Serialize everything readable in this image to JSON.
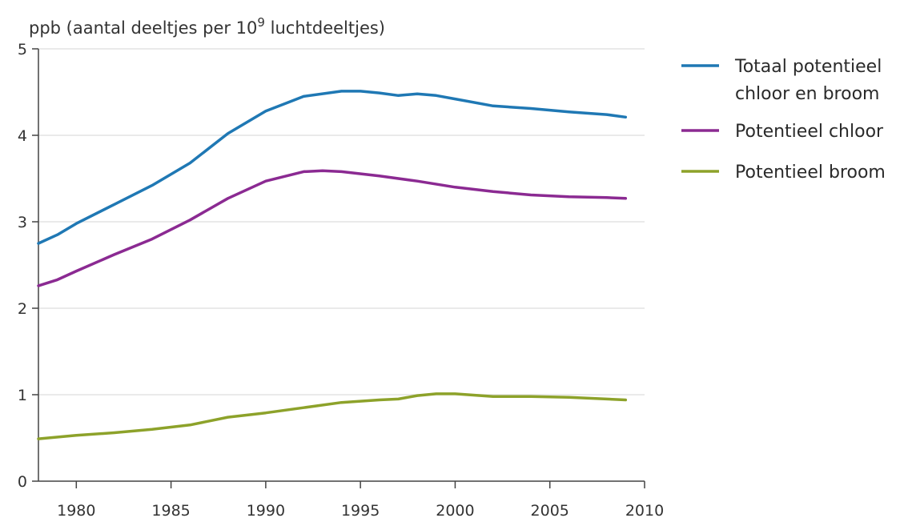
{
  "chart_data": {
    "type": "line",
    "ylabel": "ppb (aantal deeltjes per 10",
    "ylabel_exp": "9",
    "ylabel_tail": " luchtdeeltjes)",
    "xlim": [
      1978,
      2010
    ],
    "ylim": [
      0,
      5
    ],
    "xticks": [
      "1980",
      "1985",
      "1990",
      "1995",
      "2000",
      "2005",
      "2010"
    ],
    "yticks": [
      "0",
      "1",
      "2",
      "3",
      "4",
      "5"
    ],
    "grid": "horizontal",
    "legend_position": "right",
    "series": [
      {
        "name": "Totaal potentieel chloor en broom",
        "legend_lines": [
          "Totaal potentieel",
          "chloor en broom"
        ],
        "color": "#1f78b4",
        "x": [
          1978,
          1979,
          1980,
          1982,
          1984,
          1986,
          1988,
          1990,
          1992,
          1994,
          1995,
          1996,
          1997,
          1998,
          1999,
          2000,
          2002,
          2004,
          2006,
          2008,
          2009
        ],
        "y": [
          2.75,
          2.85,
          2.98,
          3.2,
          3.42,
          3.68,
          4.02,
          4.28,
          4.45,
          4.51,
          4.51,
          4.49,
          4.46,
          4.48,
          4.46,
          4.42,
          4.34,
          4.31,
          4.27,
          4.24,
          4.21
        ]
      },
      {
        "name": "Potentieel chloor",
        "legend_lines": [
          "Potentieel chloor"
        ],
        "color": "#8b2a92",
        "x": [
          1978,
          1979,
          1980,
          1982,
          1984,
          1986,
          1988,
          1990,
          1992,
          1993,
          1994,
          1996,
          1998,
          2000,
          2002,
          2004,
          2006,
          2008,
          2009
        ],
        "y": [
          2.26,
          2.33,
          2.43,
          2.62,
          2.8,
          3.02,
          3.27,
          3.47,
          3.58,
          3.59,
          3.58,
          3.53,
          3.47,
          3.4,
          3.35,
          3.31,
          3.29,
          3.28,
          3.27
        ]
      },
      {
        "name": "Potentieel broom",
        "legend_lines": [
          "Potentieel broom"
        ],
        "color": "#8da22a",
        "x": [
          1978,
          1980,
          1982,
          1984,
          1986,
          1988,
          1990,
          1992,
          1994,
          1996,
          1997,
          1998,
          1999,
          2000,
          2002,
          2004,
          2006,
          2008,
          2009
        ],
        "y": [
          0.49,
          0.53,
          0.56,
          0.6,
          0.65,
          0.74,
          0.79,
          0.85,
          0.91,
          0.94,
          0.95,
          0.99,
          1.01,
          1.01,
          0.98,
          0.98,
          0.97,
          0.95,
          0.94
        ]
      }
    ]
  }
}
